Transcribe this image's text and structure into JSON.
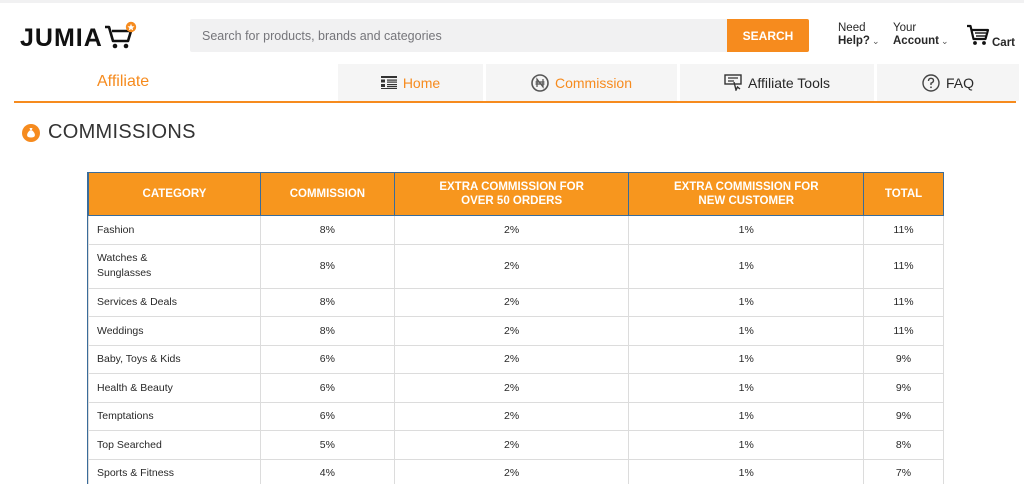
{
  "header": {
    "logo_text": "JUMIA",
    "search_placeholder": "Search for products, brands and categories",
    "search_button": "SEARCH",
    "help_line1": "Need",
    "help_line2": "Help?",
    "account_line1": "Your",
    "account_line2": "Account",
    "cart_label": "Cart",
    "brand_color": "#f68b1e"
  },
  "affiliate_nav": {
    "title": "Affiliate",
    "tabs": [
      {
        "label": "Home",
        "icon": "list-icon"
      },
      {
        "label": "Commission",
        "icon": "naira-coin-icon"
      },
      {
        "label": "Affiliate Tools",
        "icon": "tools-icon"
      },
      {
        "label": "FAQ",
        "icon": "question-icon"
      }
    ]
  },
  "page": {
    "title": "COMMISSIONS",
    "title_icon": "moneybag-icon"
  },
  "table": {
    "headers": [
      "CATEGORY",
      "COMMISSION",
      "EXTRA COMMISSION FOR OVER 50 ORDERS",
      "EXTRA COMMISSION FOR NEW CUSTOMER",
      "TOTAL"
    ],
    "headers_line1": [
      "CATEGORY",
      "COMMISSION",
      "EXTRA COMMISSION FOR",
      "EXTRA COMMISSION FOR",
      "TOTAL"
    ],
    "headers_line2": [
      "",
      "",
      "OVER 50 ORDERS",
      "NEW CUSTOMER",
      ""
    ],
    "rows": [
      {
        "category": "Fashion",
        "commission": "8%",
        "extra_50": "2%",
        "extra_new": "1%",
        "total": "11%"
      },
      {
        "category": "Watches & Sunglasses",
        "commission": "8%",
        "extra_50": "2%",
        "extra_new": "1%",
        "total": "11%"
      },
      {
        "category": "Services & Deals",
        "commission": "8%",
        "extra_50": "2%",
        "extra_new": "1%",
        "total": "11%"
      },
      {
        "category": "Weddings",
        "commission": "8%",
        "extra_50": "2%",
        "extra_new": "1%",
        "total": "11%"
      },
      {
        "category": "Baby, Toys & Kids",
        "commission": "6%",
        "extra_50": "2%",
        "extra_new": "1%",
        "total": "9%"
      },
      {
        "category": "Health & Beauty",
        "commission": "6%",
        "extra_50": "2%",
        "extra_new": "1%",
        "total": "9%"
      },
      {
        "category": "Temptations",
        "commission": "6%",
        "extra_50": "2%",
        "extra_new": "1%",
        "total": "9%"
      },
      {
        "category": "Top Searched",
        "commission": "5%",
        "extra_50": "2%",
        "extra_new": "1%",
        "total": "8%"
      },
      {
        "category": "Sports & Fitness",
        "commission": "4%",
        "extra_50": "2%",
        "extra_new": "1%",
        "total": "7%"
      }
    ]
  }
}
